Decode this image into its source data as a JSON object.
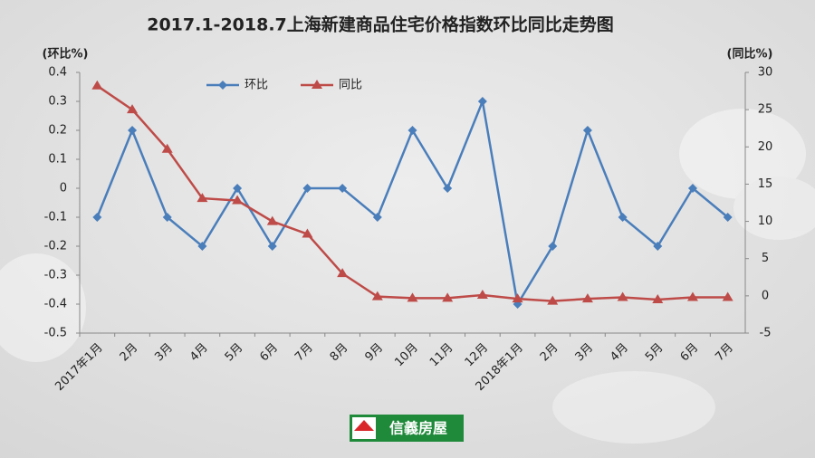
{
  "chart_data": {
    "type": "line",
    "title": "2017.1-2018.7上海新建商品住宅价格指数环比同比走势图",
    "y_label": "(环比%)",
    "y2_label": "(同比%)",
    "categories": [
      "2017年1月",
      "2月",
      "3月",
      "4月",
      "5月",
      "6月",
      "7月",
      "8月",
      "9月",
      "10月",
      "11月",
      "12月",
      "2018年1月",
      "2月",
      "3月",
      "4月",
      "5月",
      "6月",
      "7月"
    ],
    "series": [
      {
        "name": "环比",
        "color": "#4a7ebb",
        "marker": "diamond",
        "values": [
          -0.1,
          0.2,
          -0.1,
          -0.2,
          0,
          -0.2,
          0,
          0,
          -0.1,
          0.2,
          0,
          0.3,
          -0.4,
          -0.2,
          0.2,
          -0.1,
          -0.2,
          0,
          -0.1
        ]
      },
      {
        "name": "同比",
        "color": "#be4b48",
        "marker": "triangle",
        "axis": "y2",
        "values": [
          28.2,
          25.0,
          19.7,
          13.1,
          12.8,
          10.0,
          8.3,
          3.0,
          -0.1,
          -0.3,
          -0.3,
          0.1,
          -0.4,
          -0.7,
          -0.4,
          -0.2,
          -0.5,
          -0.2,
          -0.2
        ]
      }
    ],
    "ylim": [
      -0.5,
      0.4
    ],
    "yticks": [
      0.4,
      0.3,
      0.2,
      0.1,
      0,
      -0.1,
      -0.2,
      -0.3,
      -0.4,
      -0.5
    ],
    "y2lim": [
      -5,
      30
    ],
    "y2ticks": [
      30,
      25,
      20,
      15,
      10,
      5,
      0,
      -5
    ],
    "legend": "top",
    "logo": "信義房屋"
  }
}
